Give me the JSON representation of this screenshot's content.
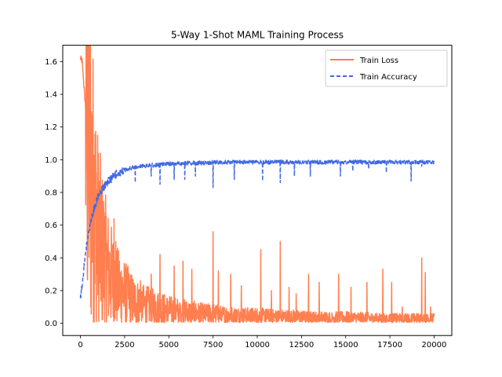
{
  "chart_data": {
    "type": "line",
    "title": "5-Way 1-Shot MAML Training Process",
    "xlabel": "",
    "ylabel": "",
    "xlim": [
      -1000,
      21000
    ],
    "ylim": [
      -0.075,
      1.7
    ],
    "x_ticks": [
      0,
      2500,
      5000,
      7500,
      10000,
      12500,
      15000,
      17500,
      20000
    ],
    "x_tick_labels": [
      "0",
      "2500",
      "5000",
      "7500",
      "10000",
      "12500",
      "15000",
      "17500",
      "20000"
    ],
    "y_ticks": [
      0.0,
      0.2,
      0.4,
      0.6,
      0.8,
      1.0,
      1.2,
      1.4,
      1.6
    ],
    "y_tick_labels": [
      "0.0",
      "0.2",
      "0.4",
      "0.6",
      "0.8",
      "1.0",
      "1.2",
      "1.4",
      "1.6"
    ],
    "grid": false,
    "legend_position": "upper right",
    "series": [
      {
        "name": "Train Loss",
        "color": "#FF7F50",
        "style": "solid",
        "x": [
          0,
          100,
          200,
          300,
          400,
          500,
          600,
          700,
          800,
          900,
          1000,
          1200,
          1400,
          1600,
          1800,
          2000,
          2250,
          2500,
          2750,
          3000,
          3500,
          4000,
          4500,
          5000,
          5500,
          6000,
          6500,
          7000,
          7500,
          8000,
          9000,
          10000,
          11000,
          12000,
          13000,
          14000,
          15000,
          16000,
          17000,
          18000,
          19000,
          20000
        ],
        "values": [
          1.62,
          1.6,
          1.45,
          1.3,
          1.1,
          0.95,
          0.82,
          0.72,
          0.62,
          0.55,
          0.48,
          0.4,
          0.33,
          0.28,
          0.24,
          0.2,
          0.18,
          0.16,
          0.14,
          0.12,
          0.1,
          0.09,
          0.08,
          0.07,
          0.065,
          0.06,
          0.055,
          0.05,
          0.05,
          0.045,
          0.04,
          0.04,
          0.035,
          0.035,
          0.03,
          0.03,
          0.03,
          0.028,
          0.025,
          0.025,
          0.025,
          0.025
        ],
        "spikes": [
          {
            "x": 1900,
            "y": 0.64
          },
          {
            "x": 2000,
            "y": 0.5
          },
          {
            "x": 2200,
            "y": 0.38
          },
          {
            "x": 2650,
            "y": 0.3
          },
          {
            "x": 3400,
            "y": 0.26
          },
          {
            "x": 4000,
            "y": 0.3
          },
          {
            "x": 4500,
            "y": 0.42
          },
          {
            "x": 5300,
            "y": 0.35
          },
          {
            "x": 5800,
            "y": 0.38
          },
          {
            "x": 6300,
            "y": 0.33
          },
          {
            "x": 7500,
            "y": 0.56
          },
          {
            "x": 7800,
            "y": 0.32
          },
          {
            "x": 8500,
            "y": 0.3
          },
          {
            "x": 9100,
            "y": 0.23
          },
          {
            "x": 10200,
            "y": 0.45
          },
          {
            "x": 10800,
            "y": 0.2
          },
          {
            "x": 11300,
            "y": 0.5
          },
          {
            "x": 11800,
            "y": 0.22
          },
          {
            "x": 12200,
            "y": 0.18
          },
          {
            "x": 12900,
            "y": 0.3
          },
          {
            "x": 13500,
            "y": 0.25
          },
          {
            "x": 14600,
            "y": 0.3
          },
          {
            "x": 15300,
            "y": 0.22
          },
          {
            "x": 16200,
            "y": 0.25
          },
          {
            "x": 17100,
            "y": 0.33
          },
          {
            "x": 17600,
            "y": 0.25
          },
          {
            "x": 18200,
            "y": 0.1
          },
          {
            "x": 19300,
            "y": 0.4
          },
          {
            "x": 19500,
            "y": 0.31
          },
          {
            "x": 19800,
            "y": 0.1
          }
        ]
      },
      {
        "name": "Train Accuracy",
        "color": "#4169E1",
        "style": "dashed",
        "x": [
          0,
          100,
          200,
          300,
          400,
          500,
          600,
          700,
          800,
          900,
          1000,
          1200,
          1400,
          1600,
          1800,
          2000,
          2250,
          2500,
          2750,
          3000,
          3500,
          4000,
          4500,
          5000,
          5500,
          6000,
          6500,
          7000,
          7500,
          8000,
          9000,
          10000,
          11000,
          12000,
          13000,
          14000,
          15000,
          16000,
          17000,
          18000,
          19000,
          20000
        ],
        "values": [
          0.17,
          0.24,
          0.36,
          0.45,
          0.52,
          0.59,
          0.64,
          0.68,
          0.72,
          0.75,
          0.78,
          0.82,
          0.86,
          0.88,
          0.9,
          0.92,
          0.93,
          0.94,
          0.95,
          0.96,
          0.965,
          0.97,
          0.975,
          0.98,
          0.98,
          0.985,
          0.985,
          0.985,
          0.99,
          0.99,
          0.99,
          0.99,
          0.99,
          0.99,
          0.99,
          0.99,
          0.99,
          0.99,
          0.99,
          0.99,
          0.99,
          0.99
        ],
        "dips": [
          {
            "x": 3100,
            "y": 0.86
          },
          {
            "x": 4000,
            "y": 0.9
          },
          {
            "x": 4500,
            "y": 0.85
          },
          {
            "x": 5300,
            "y": 0.88
          },
          {
            "x": 5900,
            "y": 0.88
          },
          {
            "x": 6500,
            "y": 0.9
          },
          {
            "x": 7500,
            "y": 0.83
          },
          {
            "x": 8700,
            "y": 0.88
          },
          {
            "x": 10300,
            "y": 0.87
          },
          {
            "x": 11300,
            "y": 0.86
          },
          {
            "x": 12100,
            "y": 0.9
          },
          {
            "x": 13000,
            "y": 0.9
          },
          {
            "x": 14700,
            "y": 0.9
          },
          {
            "x": 15400,
            "y": 0.93
          },
          {
            "x": 16300,
            "y": 0.94
          },
          {
            "x": 17300,
            "y": 0.92
          },
          {
            "x": 18700,
            "y": 0.87
          },
          {
            "x": 19300,
            "y": 0.96
          }
        ]
      }
    ]
  }
}
